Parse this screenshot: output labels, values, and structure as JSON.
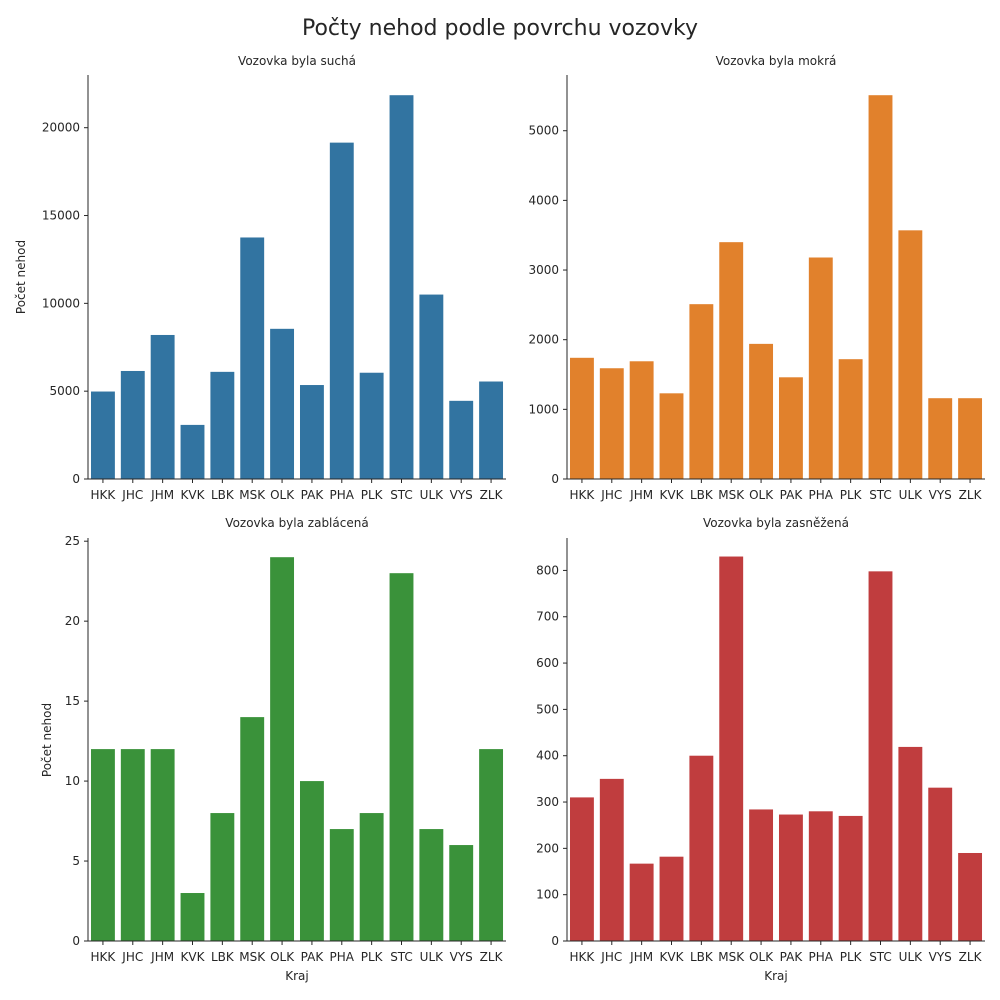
{
  "figure": {
    "title": "Počty nehod podle povrchu vozovky"
  },
  "chart_data": [
    {
      "type": "bar",
      "title": "Vozovka byla suchá",
      "xlabel": "",
      "ylabel": "Počet nehod",
      "color": "#3274a1",
      "ylim": [
        0,
        23000
      ],
      "yticks": [
        0,
        5000,
        10000,
        15000,
        20000
      ],
      "categories": [
        "HKK",
        "JHC",
        "JHM",
        "KVK",
        "LBK",
        "MSK",
        "OLK",
        "PAK",
        "PHA",
        "PLK",
        "STC",
        "ULK",
        "VYS",
        "ZLK"
      ],
      "values": [
        4980,
        6150,
        8200,
        3080,
        6100,
        13750,
        8550,
        5350,
        19150,
        6050,
        21850,
        10500,
        4450,
        5550
      ],
      "grid": false
    },
    {
      "type": "bar",
      "title": "Vozovka byla mokrá",
      "xlabel": "",
      "ylabel": "",
      "color": "#e1812c",
      "ylim": [
        0,
        5800
      ],
      "yticks": [
        0,
        1000,
        2000,
        3000,
        4000,
        5000
      ],
      "categories": [
        "HKK",
        "JHC",
        "JHM",
        "KVK",
        "LBK",
        "MSK",
        "OLK",
        "PAK",
        "PHA",
        "PLK",
        "STC",
        "ULK",
        "VYS",
        "ZLK"
      ],
      "values": [
        1740,
        1590,
        1690,
        1230,
        2510,
        3400,
        1940,
        1460,
        3180,
        1720,
        5510,
        3570,
        1160,
        1160
      ],
      "grid": false
    },
    {
      "type": "bar",
      "title": "Vozovka byla zablácená",
      "xlabel": "Kraj",
      "ylabel": "Počet nehod",
      "color": "#3a923a",
      "ylim": [
        0,
        25.2
      ],
      "yticks": [
        0,
        5,
        10,
        15,
        20,
        25
      ],
      "categories": [
        "HKK",
        "JHC",
        "JHM",
        "KVK",
        "LBK",
        "MSK",
        "OLK",
        "PAK",
        "PHA",
        "PLK",
        "STC",
        "ULK",
        "VYS",
        "ZLK"
      ],
      "values": [
        12,
        12,
        12,
        3,
        8,
        14,
        24,
        10,
        7,
        8,
        23,
        7,
        6,
        12
      ],
      "grid": false
    },
    {
      "type": "bar",
      "title": "Vozovka byla zasněžená",
      "xlabel": "Kraj",
      "ylabel": "",
      "color": "#c03d3e",
      "ylim": [
        0,
        870
      ],
      "yticks": [
        0,
        100,
        200,
        300,
        400,
        500,
        600,
        700,
        800
      ],
      "categories": [
        "HKK",
        "JHC",
        "JHM",
        "KVK",
        "LBK",
        "MSK",
        "OLK",
        "PAK",
        "PHA",
        "PLK",
        "STC",
        "ULK",
        "VYS",
        "ZLK"
      ],
      "values": [
        310,
        350,
        167,
        182,
        400,
        830,
        284,
        273,
        280,
        270,
        798,
        419,
        331,
        190
      ],
      "grid": false
    }
  ]
}
